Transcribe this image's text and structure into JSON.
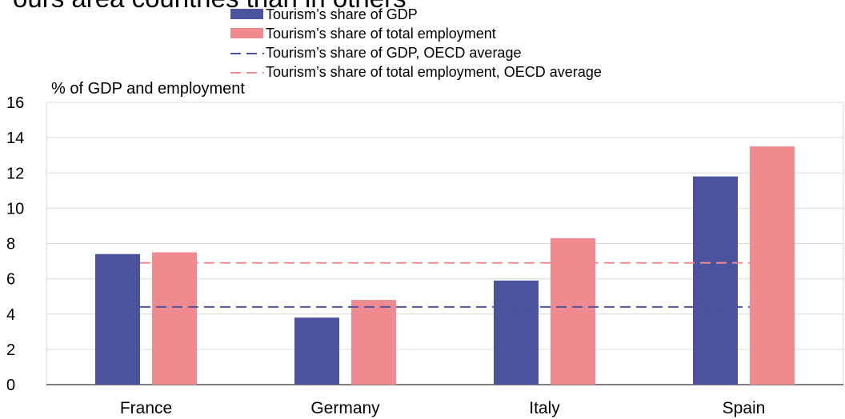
{
  "chart_data": {
    "type": "bar",
    "title": "",
    "ylabel": "% of GDP and employment",
    "xlabel": "",
    "ylim": [
      0,
      16
    ],
    "yticks": [
      0,
      2,
      4,
      6,
      8,
      10,
      12,
      14,
      16
    ],
    "categories": [
      "France",
      "Germany",
      "Italy",
      "Spain"
    ],
    "series": [
      {
        "name": "Tourism’s share of GDP",
        "color": "#4b539f",
        "values": [
          7.4,
          3.8,
          5.9,
          11.8
        ]
      },
      {
        "name": "Tourism’s share of total employment",
        "color": "#ef8a8f",
        "values": [
          7.5,
          4.8,
          8.3,
          13.5
        ]
      }
    ],
    "reference_lines": [
      {
        "name": "Tourism’s share of GDP, OECD average",
        "color": "#4b539f",
        "value": 4.4,
        "style": "dashed"
      },
      {
        "name": "Tourism’s share of total employment, OECD average",
        "color": "#ef8a8f",
        "value": 6.9,
        "style": "dashed"
      }
    ],
    "grid": true,
    "legend_position": "top"
  },
  "header": {
    "title_partial": "ours area countries than in others"
  }
}
